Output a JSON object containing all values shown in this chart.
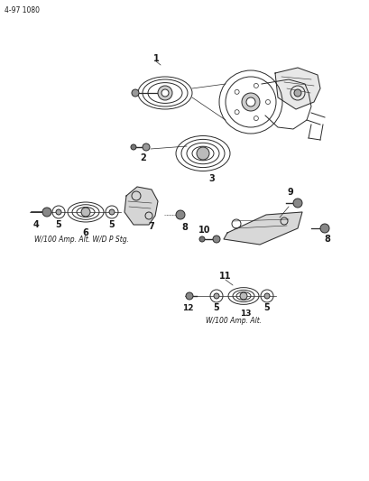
{
  "page_code": "4-97 1080",
  "background_color": "#ffffff",
  "text_color": "#1a1a1a",
  "caption1": "W/100 Amp. Alt. W/D P Stg.",
  "caption2": "W/100 Amp. Alt.",
  "fig_width": 4.1,
  "fig_height": 5.33,
  "dpi": 100,
  "lw": 0.7,
  "sketch_color": "#2a2a2a"
}
